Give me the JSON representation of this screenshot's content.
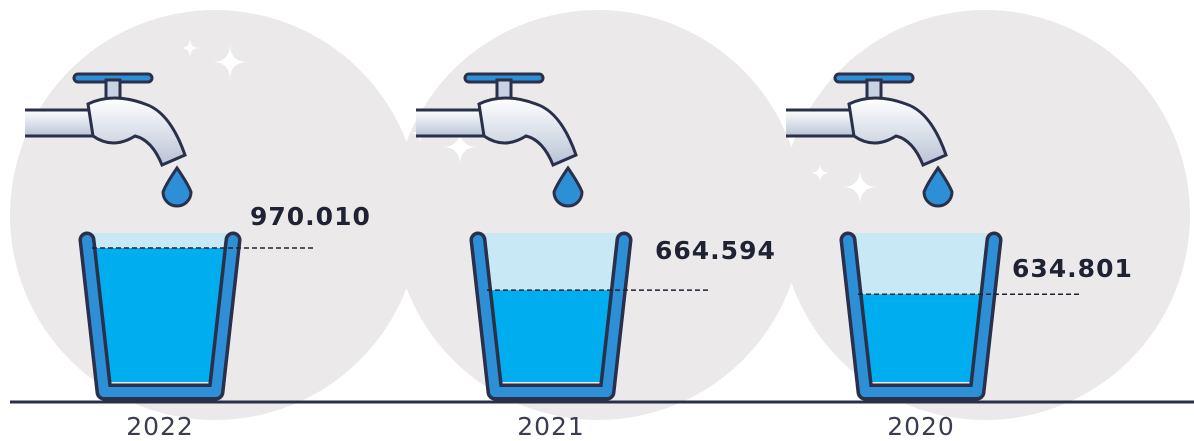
{
  "chart_data": {
    "type": "bar",
    "categories": [
      "2022",
      "2021",
      "2020"
    ],
    "values": [
      970010,
      664594,
      634801
    ],
    "value_labels": [
      "970.010",
      "664.594",
      "634.801"
    ],
    "ylim": [
      0,
      1100000
    ],
    "color": "#00aeef"
  }
}
